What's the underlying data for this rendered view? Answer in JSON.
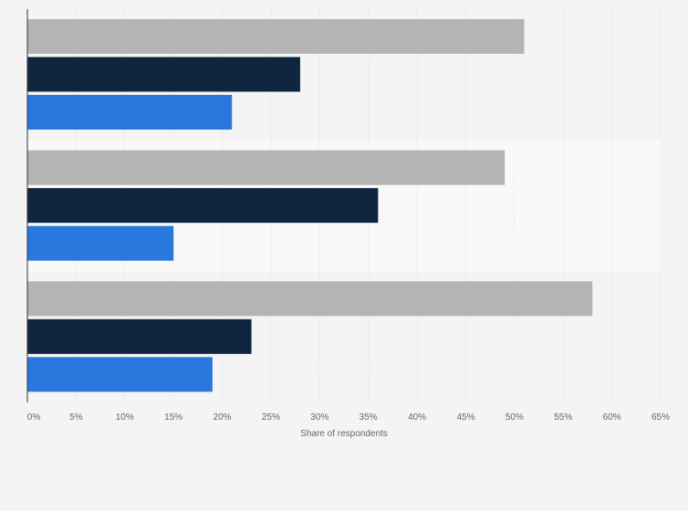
{
  "chart_data": {
    "type": "bar",
    "orientation": "horizontal",
    "categories": [
      "",
      "",
      ""
    ],
    "series": [
      {
        "values": [
          51,
          49,
          58
        ],
        "color": "#b4b4b4"
      },
      {
        "values": [
          28,
          36,
          23
        ],
        "color": "#10263f"
      },
      {
        "values": [
          21,
          15,
          19
        ],
        "color": "#2878dd"
      }
    ],
    "xlabel": "Share of respondents",
    "ylabel": "",
    "xlim": [
      0,
      65
    ],
    "xticks": [
      "0%",
      "5%",
      "10%",
      "15%",
      "20%",
      "25%",
      "30%",
      "35%",
      "40%",
      "45%",
      "50%",
      "55%",
      "60%",
      "65%"
    ],
    "grid": true,
    "legend": false
  }
}
